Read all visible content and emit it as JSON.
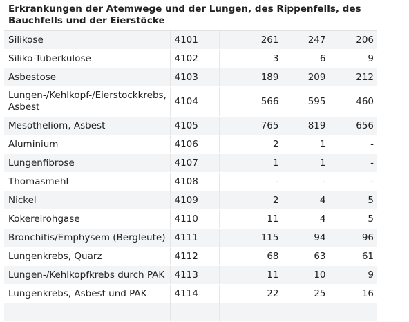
{
  "table": {
    "section_title": "Erkrankungen der Atemwege und der Lungen, des Rippenfells, des Bauchfells und der Eierstöcke",
    "rows": [
      {
        "name": "Silikose",
        "code": "4101",
        "v1": "261",
        "v2": "247",
        "v3": "206"
      },
      {
        "name": "Siliko-Tuberkulose",
        "code": "4102",
        "v1": "3",
        "v2": "6",
        "v3": "9"
      },
      {
        "name": "Asbestose",
        "code": "4103",
        "v1": "189",
        "v2": "209",
        "v3": "212"
      },
      {
        "name": "Lungen-/Kehlkopf-/Eierstockkrebs, Asbest",
        "code": "4104",
        "v1": "566",
        "v2": "595",
        "v3": "460"
      },
      {
        "name": "Mesotheliom, Asbest",
        "code": "4105",
        "v1": "765",
        "v2": "819",
        "v3": "656"
      },
      {
        "name": "Aluminium",
        "code": "4106",
        "v1": "2",
        "v2": "1",
        "v3": "-"
      },
      {
        "name": "Lungenfibrose",
        "code": "4107",
        "v1": "1",
        "v2": "1",
        "v3": "-"
      },
      {
        "name": "Thomasmehl",
        "code": "4108",
        "v1": "-",
        "v2": "-",
        "v3": "-"
      },
      {
        "name": "Nickel",
        "code": "4109",
        "v1": "2",
        "v2": "4",
        "v3": "5"
      },
      {
        "name": "Kokereirohgase",
        "code": "4110",
        "v1": "11",
        "v2": "4",
        "v3": "5"
      },
      {
        "name": "Bronchitis/Emphysem (Bergleute)",
        "code": "4111",
        "v1": "115",
        "v2": "94",
        "v3": "96"
      },
      {
        "name": "Lungenkrebs, Quarz",
        "code": "4112",
        "v1": "68",
        "v2": "63",
        "v3": "61"
      },
      {
        "name": "Lungen-/Kehlkopfkrebs durch PAK",
        "code": "4113",
        "v1": "11",
        "v2": "10",
        "v3": "9"
      },
      {
        "name": "Lungenkrebs, Asbest und PAK",
        "code": "4114",
        "v1": "22",
        "v2": "25",
        "v3": "16"
      },
      {
        "name": "",
        "code": "",
        "v1": "",
        "v2": "",
        "v3": ""
      }
    ]
  }
}
